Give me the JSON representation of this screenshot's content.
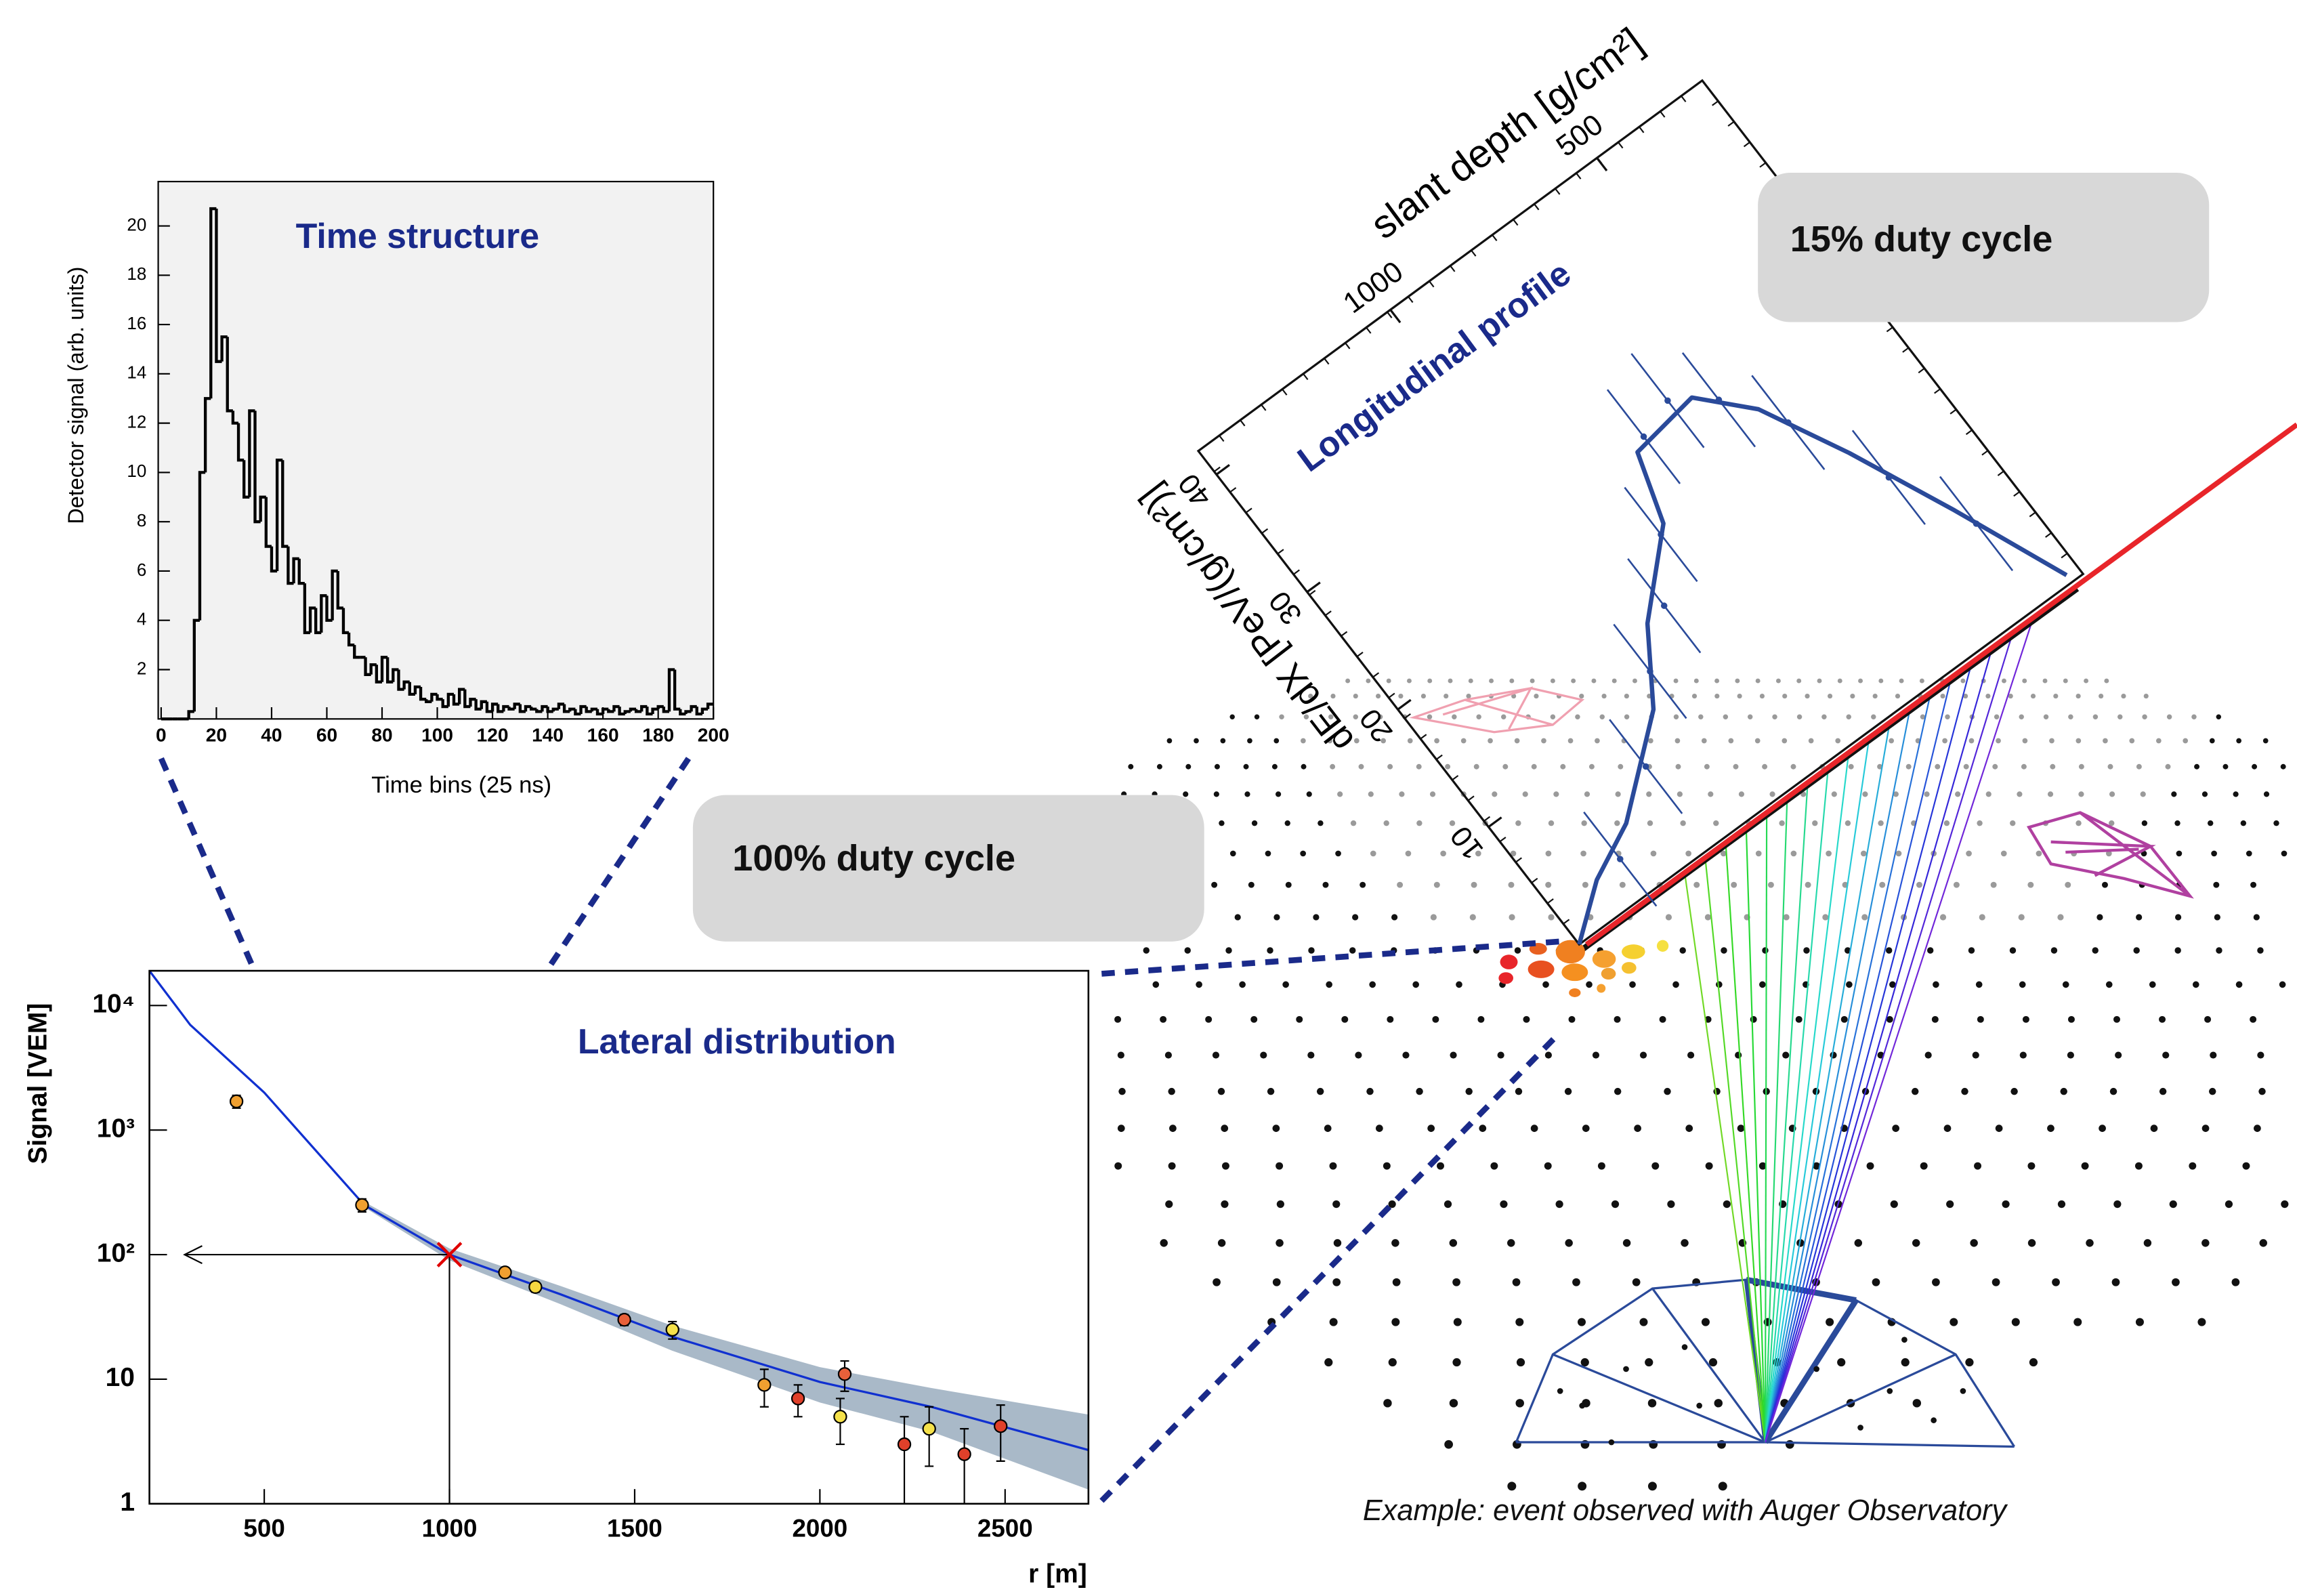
{
  "annotations": {
    "fd_duty": "15% duty cycle",
    "sd_duty": "100% duty cycle",
    "caption": "Example: event observed with Auger Observatory"
  },
  "chart_data": [
    {
      "type": "histogram",
      "title": "Time structure",
      "x_label": "Time bins (25 ns)",
      "y_label": "Detector signal (arb. units)",
      "color": "#000000",
      "background": "#f2f2f2",
      "bins": [
        0,
        2,
        4,
        6,
        8,
        10,
        12,
        14,
        16,
        18,
        20,
        22,
        24,
        26,
        28,
        30,
        32,
        34,
        36,
        38,
        40,
        42,
        44,
        46,
        48,
        50,
        52,
        54,
        56,
        58,
        60,
        62,
        64,
        66,
        68,
        70,
        72,
        74,
        76,
        78,
        80,
        82,
        84,
        86,
        88,
        90,
        92,
        94,
        96,
        98,
        100,
        102,
        104,
        106,
        108,
        110,
        112,
        114,
        116,
        118,
        120,
        122,
        124,
        126,
        128,
        130,
        132,
        134,
        136,
        138,
        140,
        142,
        144,
        146,
        148,
        150,
        152,
        154,
        156,
        158,
        160,
        162,
        164,
        166,
        168,
        170,
        172,
        174,
        176,
        178,
        180,
        182,
        184,
        186,
        188,
        190,
        192,
        194,
        196,
        198,
        200
      ],
      "counts": [
        0,
        0,
        0,
        0,
        0,
        0.3,
        4,
        10,
        13,
        20.7,
        14.5,
        15.5,
        12.5,
        12,
        10.5,
        9,
        12.5,
        8,
        9,
        7,
        6,
        10.5,
        7,
        5.5,
        6.5,
        5.5,
        3.5,
        4.5,
        3.5,
        5,
        4,
        6,
        4.5,
        3.5,
        3,
        2.5,
        2.5,
        1.8,
        2.2,
        1.5,
        2.5,
        1.5,
        2,
        1.2,
        1.5,
        1,
        1.3,
        0.8,
        0.7,
        1,
        0.8,
        0.5,
        1,
        0.6,
        1.2,
        0.5,
        0.8,
        0.4,
        0.7,
        0.3,
        0.6,
        0.3,
        0.5,
        0.4,
        0.6,
        0.3,
        0.5,
        0.4,
        0.3,
        0.5,
        0.3,
        0.4,
        0.6,
        0.3,
        0.4,
        0.2,
        0.5,
        0.3,
        0.4,
        0.2,
        0.4,
        0.3,
        0.5,
        0.2,
        0.3,
        0.4,
        0.3,
        0.5,
        0.2,
        0.4,
        0.5,
        0.3,
        2,
        0.4,
        0.2,
        0.3,
        0.5,
        0.2,
        0.4,
        0.6
      ],
      "xlim": [
        0,
        200
      ],
      "xticks": [
        0,
        20,
        40,
        60,
        80,
        100,
        120,
        140,
        160,
        180,
        200
      ],
      "ylim": [
        0,
        21.8
      ],
      "yticks": [
        2,
        4,
        6,
        8,
        10,
        12,
        14,
        16,
        18,
        20
      ]
    },
    {
      "type": "scatter",
      "title": "Lateral distribution",
      "x_label": "r [m]",
      "y_label": "Signal [VEM]",
      "log_y": true,
      "xlim": [
        190,
        2725
      ],
      "xticks": [
        500,
        1000,
        1500,
        2000,
        2500
      ],
      "ylim": [
        1,
        19000
      ],
      "yticks": [
        1,
        10,
        {
          "value": 100,
          "label": "10²"
        },
        {
          "value": 1000,
          "label": "10³"
        },
        {
          "value": 10000,
          "label": "10⁴"
        }
      ],
      "points": {
        "x": [
          425,
          764,
          1150,
          1232,
          1472,
          1602,
          1850,
          1941,
          2055,
          2067,
          2228,
          2295,
          2390,
          2488
        ],
        "values": [
          1700,
          250,
          72,
          55,
          30,
          25,
          9,
          7,
          5,
          11,
          3,
          4,
          2.5,
          4.2
        ],
        "errors": [
          200,
          30,
          6,
          5,
          3,
          4,
          3,
          2,
          2,
          3,
          2,
          2,
          1.5,
          2
        ],
        "colors": [
          "#f0a030",
          "#f0a030",
          "#f0a030",
          "#f5d840",
          "#e8603a",
          "#f5e14a",
          "#f0a030",
          "#e0402a",
          "#f5e14a",
          "#e8603a",
          "#e0402a",
          "#f5e14a",
          "#e0402a",
          "#e0402a"
        ]
      },
      "fit": {
        "color": "#1030d0",
        "x": [
          190,
          300,
          500,
          770,
          1000,
          1300,
          1600,
          2000,
          2300,
          2725
        ],
        "values": [
          19000,
          7000,
          2000,
          250,
          100,
          48,
          22,
          9.5,
          6,
          2.7
        ]
      },
      "band": {
        "color": "#a9b9c8",
        "x": [
          770,
          1000,
          1300,
          1600,
          2000,
          2300,
          2725
        ],
        "low": [
          240,
          90,
          40,
          17,
          6.5,
          3.8,
          1.3
        ],
        "high": [
          265,
          112,
          56,
          27,
          12.5,
          8.5,
          5.2
        ]
      },
      "reference": {
        "x": 1000,
        "y": 100,
        "color": "#e00000"
      }
    },
    {
      "type": "line",
      "title": "Longitudinal profile",
      "x_label": "slant depth [g/cm²]",
      "y_label": "dE/dX [PeV/(g/cm²)]",
      "color": "#2a4a9a",
      "xlim": [
        1465,
        245
      ],
      "xticks": [
        1000,
        500
      ],
      "ylim": [
        0,
        42
      ],
      "yticks": [
        10,
        20,
        30,
        40
      ],
      "x": [
        1465,
        1361,
        1248,
        1070,
        977,
        833,
        788,
        639,
        550,
        462,
        368,
        272
      ],
      "values": [
        0,
        2.8,
        4.7,
        9.8,
        14.7,
        19.5,
        24.4,
        25.2,
        21.9,
        15.9,
        8.6,
        0.6
      ],
      "points": {
        "x": [
          1300,
          1150,
          1030,
          930,
          850,
          760,
          680,
          600,
          520,
          430,
          350
        ],
        "values": [
          3,
          7,
          12,
          15,
          19,
          25,
          26,
          24,
          20,
          13,
          7
        ],
        "errors": [
          4,
          4,
          4,
          4,
          4,
          4,
          4,
          4,
          4,
          4,
          4
        ]
      }
    }
  ]
}
